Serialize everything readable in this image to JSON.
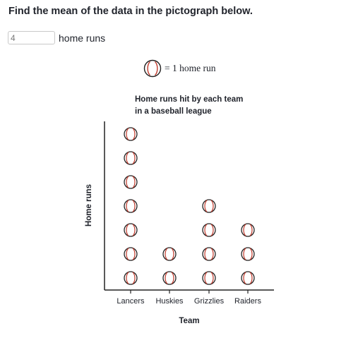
{
  "question": "Find the mean of the data in the pictograph below.",
  "answer": {
    "value": "4",
    "unit": "home runs"
  },
  "key": {
    "text": "= 1 home run"
  },
  "chart_data": {
    "type": "pictograph",
    "title_lines": [
      "Home runs hit by each team",
      "in a baseball league"
    ],
    "xlabel": "Team",
    "ylabel": "Home runs",
    "categories": [
      "Lancers",
      "Huskies",
      "Grizzlies",
      "Raiders"
    ],
    "values": [
      7,
      2,
      4,
      3
    ],
    "symbol": "baseball-icon",
    "symbol_value": 1,
    "colors": {
      "seam": "#c0392b",
      "outline": "#222222",
      "axis": "#222222"
    }
  }
}
